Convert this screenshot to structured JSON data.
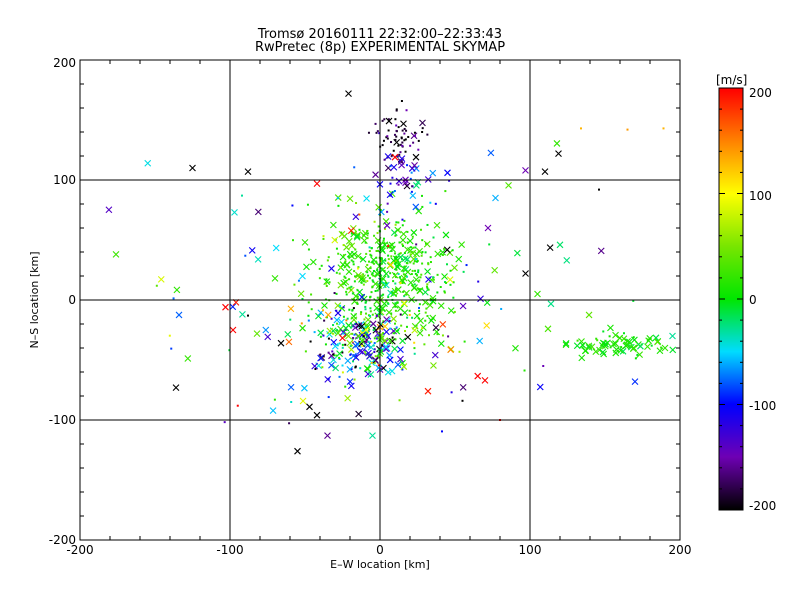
{
  "chart_data": {
    "type": "scatter",
    "title": "Tromsø 20160111 22:32:00–22:33:43",
    "subtitle": "RwPretec (8p) EXPERIMENTAL SKYMAP",
    "xlabel": "E–W location [km]",
    "ylabel": "N–S location [km]",
    "xlim": [
      -200,
      200
    ],
    "ylim": [
      -200,
      200
    ],
    "x_ticks": [
      "-200",
      "-100",
      "0",
      "100",
      "200"
    ],
    "y_ticks": [
      "-200",
      "-100",
      "0",
      "100",
      "200"
    ],
    "grid": true,
    "colorbar": {
      "label": "[m/s]",
      "range": [
        -200,
        200
      ],
      "ticks": [
        "200",
        "100",
        "0",
        "-100",
        "-200"
      ]
    },
    "clusters": [
      {
        "cx": 5,
        "cy": 20,
        "sx": 22,
        "sy": 28,
        "n": 500,
        "vmean": 15,
        "vsd": 18,
        "cross": 0.35
      },
      {
        "cx": -12,
        "cy": -35,
        "sx": 18,
        "sy": 16,
        "n": 220,
        "vmean": -60,
        "vsd": 90,
        "cross": 0.45
      },
      {
        "cx": 12,
        "cy": 135,
        "sx": 8,
        "sy": 14,
        "n": 70,
        "vmean": -185,
        "vsd": 25,
        "cross": 0.15
      },
      {
        "cx": 15,
        "cy": 95,
        "sx": 12,
        "sy": 12,
        "n": 45,
        "vmean": -105,
        "vsd": 35,
        "cross": 0.5
      },
      {
        "cx": 155,
        "cy": -38,
        "sx": 20,
        "sy": 5,
        "n": 70,
        "vmean": 10,
        "vsd": 12,
        "cross": 0.7
      },
      {
        "cx": 0,
        "cy": 0,
        "sx": 80,
        "sy": 60,
        "n": 110,
        "vmean": 0,
        "vsd": 100,
        "cross": 0.6
      }
    ],
    "points": [
      {
        "x": -176,
        "y": 38,
        "v": 25,
        "m": "x"
      },
      {
        "x": -125,
        "y": 110,
        "v": -200,
        "m": "x"
      },
      {
        "x": -88,
        "y": 107,
        "v": -200,
        "m": "x"
      },
      {
        "x": -42,
        "y": 97,
        "v": 200,
        "m": "x"
      },
      {
        "x": -21,
        "y": 172,
        "v": -200,
        "m": "x"
      },
      {
        "x": 24,
        "y": 119,
        "v": -200,
        "m": "x"
      },
      {
        "x": 10,
        "y": 119,
        "v": 200,
        "m": "x"
      },
      {
        "x": 45,
        "y": 106,
        "v": -100,
        "m": "x"
      },
      {
        "x": 97,
        "y": 108,
        "v": -150,
        "m": "x"
      },
      {
        "x": 110,
        "y": 107,
        "v": -200,
        "m": "x"
      },
      {
        "x": 119,
        "y": 122,
        "v": -200,
        "m": "x"
      },
      {
        "x": 134,
        "y": 143,
        "v": 130,
        "m": "dot"
      },
      {
        "x": 165,
        "y": 142,
        "v": 140,
        "m": "dot"
      },
      {
        "x": 189,
        "y": 143,
        "v": 130,
        "m": "dot"
      },
      {
        "x": 146,
        "y": 92,
        "v": -200,
        "m": "dot"
      },
      {
        "x": 120,
        "y": 46,
        "v": -20,
        "m": "x"
      },
      {
        "x": 72,
        "y": 60,
        "v": -150,
        "m": "x"
      },
      {
        "x": 77,
        "y": 85,
        "v": -60,
        "m": "x"
      },
      {
        "x": -97,
        "y": 73,
        "v": -40,
        "m": "x"
      },
      {
        "x": -92,
        "y": 87,
        "v": -30,
        "m": "dot"
      },
      {
        "x": -103,
        "y": -6,
        "v": 200,
        "m": "x"
      },
      {
        "x": -96,
        "y": -2,
        "v": 190,
        "m": "x"
      },
      {
        "x": -98,
        "y": -25,
        "v": 200,
        "m": "x"
      },
      {
        "x": -88,
        "y": -13,
        "v": -200,
        "m": "dot"
      },
      {
        "x": -82,
        "y": -28,
        "v": 40,
        "m": "x"
      },
      {
        "x": -66,
        "y": -36,
        "v": -200,
        "m": "x"
      },
      {
        "x": -136,
        "y": -73,
        "v": -200,
        "m": "x"
      },
      {
        "x": -55,
        "y": -126,
        "v": -200,
        "m": "x"
      },
      {
        "x": -47,
        "y": -89,
        "v": -200,
        "m": "x"
      },
      {
        "x": -42,
        "y": -96,
        "v": -200,
        "m": "x"
      },
      {
        "x": -35,
        "y": -113,
        "v": -160,
        "m": "x"
      },
      {
        "x": -5,
        "y": -113,
        "v": -30,
        "m": "x"
      },
      {
        "x": 32,
        "y": -76,
        "v": 190,
        "m": "x"
      },
      {
        "x": 55,
        "y": -84,
        "v": -200,
        "m": "dot"
      },
      {
        "x": 70,
        "y": -67,
        "v": 200,
        "m": "x"
      },
      {
        "x": 80,
        "y": -100,
        "v": 200,
        "m": "dot"
      },
      {
        "x": 112,
        "y": -24,
        "v": 30,
        "m": "x"
      },
      {
        "x": 170,
        "y": -68,
        "v": -90,
        "m": "x"
      },
      {
        "x": 190,
        "y": -40,
        "v": 20,
        "m": "x"
      },
      {
        "x": 195,
        "y": -30,
        "v": -30,
        "m": "x"
      },
      {
        "x": 185,
        "y": -35,
        "v": 40,
        "m": "x"
      },
      {
        "x": -70,
        "y": 18,
        "v": 20,
        "m": "x"
      },
      {
        "x": -50,
        "y": 48,
        "v": 20,
        "m": "x"
      },
      {
        "x": 105,
        "y": 5,
        "v": 20,
        "m": "x"
      }
    ]
  }
}
